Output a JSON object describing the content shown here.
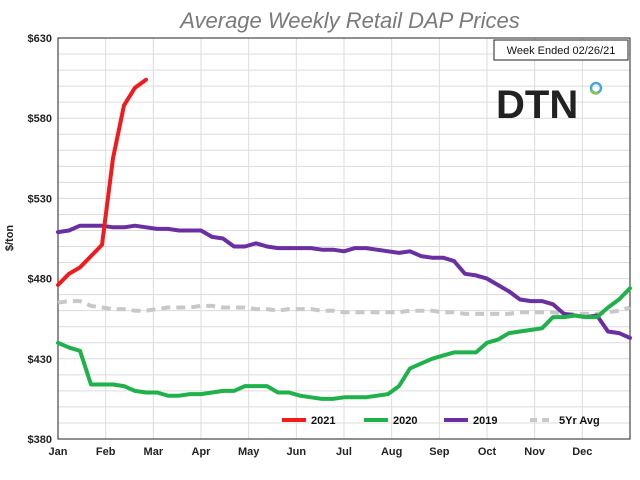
{
  "chart_data": {
    "type": "line",
    "title": "Average Weekly Retail DAP Prices",
    "xlabel": "",
    "ylabel": "$/ton",
    "ylim": [
      380,
      630
    ],
    "xlim": [
      0,
      52
    ],
    "yticks": [
      380,
      430,
      480,
      530,
      580,
      630
    ],
    "ytick_labels": [
      "$380",
      "$430",
      "$480",
      "$530",
      "$580",
      "$630"
    ],
    "month_ticks": [
      "Jan",
      "Feb",
      "Mar",
      "Apr",
      "May",
      "Jun",
      "Jul",
      "Aug",
      "Sep",
      "Oct",
      "Nov",
      "Dec"
    ],
    "annotation": "Week Ended 02/26/21",
    "logo": "DTN",
    "grid": true,
    "legend_position": "bottom-right",
    "series": [
      {
        "name": "2021",
        "color": "#ee1c1c",
        "dashed": false,
        "x": [
          0,
          1,
          2,
          3,
          4,
          5,
          6,
          7,
          8
        ],
        "values": [
          476,
          483,
          487,
          494,
          501,
          555,
          588,
          599,
          604
        ]
      },
      {
        "name": "2020",
        "color": "#1fb24a",
        "dashed": false,
        "x": [
          0,
          1,
          2,
          3,
          4,
          5,
          6,
          7,
          8,
          9,
          10,
          11,
          12,
          13,
          14,
          15,
          16,
          17,
          18,
          19,
          20,
          21,
          22,
          23,
          24,
          25,
          26,
          27,
          28,
          29,
          30,
          31,
          32,
          33,
          34,
          35,
          36,
          37,
          38,
          39,
          40,
          41,
          42,
          43,
          44,
          45,
          46,
          47,
          48,
          49,
          50,
          51,
          52
        ],
        "values": [
          440,
          437,
          435,
          414,
          414,
          414,
          413,
          410,
          409,
          409,
          407,
          407,
          408,
          408,
          409,
          410,
          410,
          413,
          413,
          413,
          409,
          409,
          407,
          406,
          405,
          405,
          406,
          406,
          406,
          407,
          408,
          413,
          424,
          427,
          430,
          432,
          434,
          434,
          434,
          440,
          442,
          446,
          447,
          448,
          449,
          456,
          456,
          457,
          456,
          456,
          462,
          467,
          474
        ]
      },
      {
        "name": "2019",
        "color": "#6a2fa0",
        "dashed": false,
        "x": [
          0,
          1,
          2,
          3,
          4,
          5,
          6,
          7,
          8,
          9,
          10,
          11,
          12,
          13,
          14,
          15,
          16,
          17,
          18,
          19,
          20,
          21,
          22,
          23,
          24,
          25,
          26,
          27,
          28,
          29,
          30,
          31,
          32,
          33,
          34,
          35,
          36,
          37,
          38,
          39,
          40,
          41,
          42,
          43,
          44,
          45,
          46,
          47,
          48,
          49,
          50,
          51,
          52
        ],
        "values": [
          509,
          510,
          513,
          513,
          513,
          512,
          512,
          513,
          512,
          511,
          511,
          510,
          510,
          510,
          506,
          505,
          500,
          500,
          502,
          500,
          499,
          499,
          499,
          499,
          498,
          498,
          497,
          499,
          499,
          498,
          497,
          496,
          497,
          494,
          493,
          493,
          491,
          483,
          482,
          480,
          476,
          472,
          467,
          466,
          466,
          464,
          458,
          457,
          456,
          457,
          447,
          446,
          443
        ]
      },
      {
        "name": "5Yr Avg",
        "color": "#c8c8c8",
        "dashed": true,
        "x": [
          0,
          1,
          2,
          3,
          4,
          5,
          6,
          7,
          8,
          9,
          10,
          11,
          12,
          13,
          14,
          15,
          16,
          17,
          18,
          19,
          20,
          21,
          22,
          23,
          24,
          25,
          26,
          27,
          28,
          29,
          30,
          31,
          32,
          33,
          34,
          35,
          36,
          37,
          38,
          39,
          40,
          41,
          42,
          43,
          44,
          45,
          46,
          47,
          48,
          49,
          50,
          51,
          52
        ],
        "values": [
          465,
          466,
          466,
          463,
          462,
          461,
          461,
          460,
          460,
          461,
          462,
          462,
          462,
          463,
          463,
          462,
          462,
          462,
          461,
          461,
          460,
          461,
          461,
          461,
          460,
          460,
          459,
          459,
          459,
          459,
          459,
          459,
          460,
          460,
          460,
          459,
          459,
          458,
          458,
          458,
          458,
          458,
          459,
          459,
          459,
          459,
          458,
          458,
          458,
          458,
          459,
          460,
          462
        ]
      }
    ]
  }
}
